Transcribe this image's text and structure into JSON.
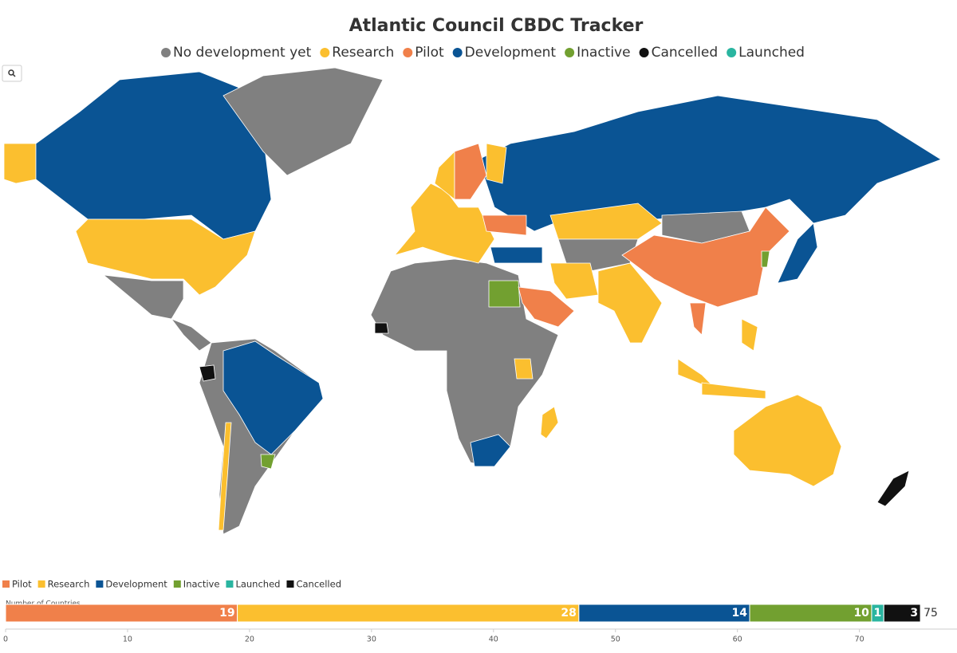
{
  "chart_data": {
    "type": "stacked-bar",
    "title": "Atlantic Council CBDC Tracker",
    "map_legend": [
      {
        "name": "No development yet",
        "color": "#808080"
      },
      {
        "name": "Research",
        "color": "#fbbf2f"
      },
      {
        "name": "Pilot",
        "color": "#f0804a"
      },
      {
        "name": "Development",
        "color": "#0a5494"
      },
      {
        "name": "Inactive",
        "color": "#72a030"
      },
      {
        "name": "Cancelled",
        "color": "#111111"
      },
      {
        "name": "Launched",
        "color": "#2ab5a0"
      }
    ],
    "x_label": "Number of Countries",
    "series": [
      {
        "name": "Pilot",
        "color": "#f0804a",
        "values": [
          19
        ]
      },
      {
        "name": "Research",
        "color": "#fbbf2f",
        "values": [
          28
        ]
      },
      {
        "name": "Development",
        "color": "#0a5494",
        "values": [
          14
        ]
      },
      {
        "name": "Inactive",
        "color": "#72a030",
        "values": [
          10
        ]
      },
      {
        "name": "Launched",
        "color": "#2ab5a0",
        "values": [
          1
        ]
      },
      {
        "name": "Cancelled",
        "color": "#111111",
        "values": [
          3
        ]
      }
    ],
    "total": 75,
    "xlim": [
      0,
      78
    ],
    "xticks": [
      0,
      10,
      20,
      30,
      40,
      50,
      60,
      70
    ]
  }
}
